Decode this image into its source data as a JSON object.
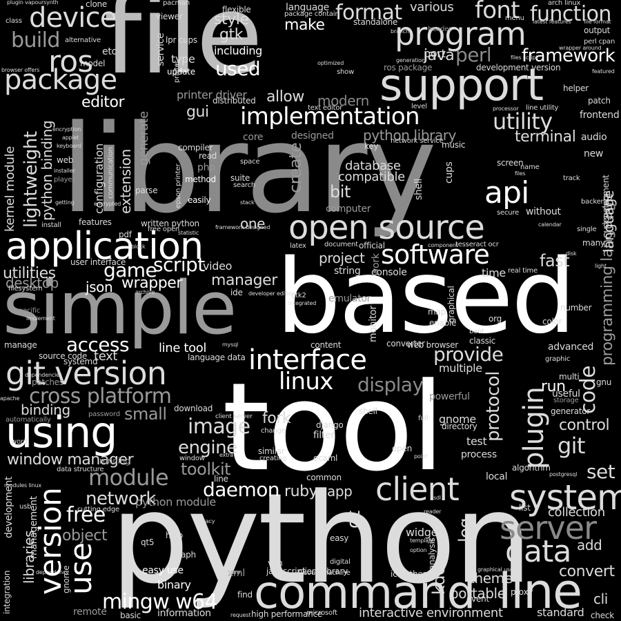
{
  "palette": {
    "background": "#000000",
    "white": "#ffffff",
    "light": "#dcdcdc",
    "mid": "#bdbdbd",
    "gray": "#9a9a9a",
    "dim": "#8a8a8a"
  },
  "words": {
    "file": "file",
    "library": "library",
    "based": "based",
    "tool": "tool",
    "python": "python",
    "simple": "simple",
    "support": "support",
    "command": "command",
    "line": "line",
    "application": "application",
    "open_source": "open source",
    "git_version": "git version",
    "using": "using",
    "interface": "interface",
    "program": "program",
    "implementation": "implementation",
    "software": "software",
    "plugin": "plugin",
    "code": "code",
    "system": "system",
    "client": "client",
    "server": "server",
    "data": "data",
    "cross_platform": "cross platform",
    "package": "package",
    "device": "device",
    "ros": "ros",
    "build": "build",
    "format": "format",
    "font": "font",
    "function": "function",
    "framework": "framework",
    "utility": "utility",
    "api": "api",
    "linux": "linux",
    "mingw_w64": "mingw w64",
    "version": "version",
    "module": "module",
    "network": "network",
    "daemon": "daemon",
    "game": "game",
    "script": "script",
    "access": "access",
    "provide": "provide",
    "display": "display",
    "image": "image",
    "engine": "engine",
    "free": "free",
    "use": "use",
    "theme": "theme",
    "portable": "portable",
    "interactive": "interactive",
    "environment": "environment",
    "editor": "editor",
    "gui": "gui",
    "perl": "perl",
    "java": "java",
    "make": "make",
    "style": "style",
    "gtk": "gtk",
    "including": "including",
    "used": "used",
    "modern": "modern",
    "allow": "allow",
    "lightweight": "lightweight",
    "python_binding": "python binding",
    "kernel_module": "kernel module",
    "utilities": "utilities",
    "desktop": "desktop",
    "window_manager": "window manager",
    "binding": "binding",
    "small": "small",
    "toolkit": "toolkit",
    "fork": "fork",
    "ruby": "ruby",
    "fast": "fast",
    "run": "run",
    "control": "control",
    "git": "git",
    "set": "set",
    "collection": "collection",
    "add": "add",
    "convert": "convert",
    "terminal": "terminal",
    "create": "create",
    "database": "database",
    "compatible": "compatible",
    "bit": "bit",
    "python_library": "python library",
    "project": "project",
    "manager": "manager",
    "wrapper": "wrapper",
    "protocol": "protocol",
    "programming_language": "programming language",
    "object": "object",
    "libraries": "libraries",
    "text": "text",
    "one": "one",
    "json": "json",
    "web": "web",
    "configuration": "configuration",
    "extension": "extension",
    "generate": "generate",
    "service": "service",
    "etc": "etc",
    "type": "type",
    "via": "via",
    "update": "update",
    "various": "various",
    "language": "language",
    "app": "app",
    "qt": "qt",
    "kde": "kde",
    "log": "log",
    "easy_use": "easy use",
    "binary": "binary",
    "remote": "remote",
    "information": "information",
    "standard": "standard",
    "check": "check",
    "fork_small": "linux",
    "multiple": "multiple",
    "powerful": "powerful",
    "test": "test",
    "process": "process",
    "gnome": "gnome",
    "widget": "widget",
    "shell": "shell",
    "filter": "filter",
    "memory": "memory",
    "emulator": "emulator",
    "string": "string",
    "console": "console",
    "time": "time",
    "advanced": "advanced",
    "audio": "audio",
    "frontend": "frontend",
    "helper": "helper",
    "music": "music",
    "screen": "screen",
    "directory": "directory",
    "user_interface": "user interface",
    "video": "video",
    "method": "method",
    "php": "php",
    "pdf": "pdf",
    "features": "features",
    "development": "development",
    "management": "management",
    "integration": "integration",
    "source_code": "source code",
    "systemd": "systemd",
    "patches": "patches",
    "dependencies": "dependencies",
    "automatically": "automatically",
    "password": "password",
    "download": "download",
    "client_server": "client server",
    "python_module": "python module",
    "line_tool": "line tool",
    "language_data": "language data",
    "data_structure": "data structure",
    "running": "running",
    "algorithm": "algorithm",
    "local": "local",
    "output": "output",
    "menu": "menu",
    "header": "header",
    "port": "port",
    "model": "model",
    "parse": "parse",
    "printer_driver": "printer driver",
    "distributed": "distributed",
    "text_editor": "text editor",
    "core": "core",
    "designed": "designed",
    "suite": "suite",
    "search": "search",
    "stack": "stack",
    "easily": "easily",
    "compiler": "compiler",
    "read": "read",
    "space": "space",
    "key": "key",
    "computer": "computer",
    "document": "document",
    "official": "official",
    "latex": "latex",
    "work": "work",
    "map": "map",
    "enable": "enable",
    "boot": "boot",
    "org": "org",
    "color": "color",
    "number": "number",
    "graphic": "graphic",
    "useful": "useful",
    "generator": "generator",
    "storage": "storage",
    "multi": "multi",
    "gnu": "gnu",
    "vim": "vim",
    "xml": "xml",
    "digital": "digital",
    "machine": "machine",
    "sound": "sound",
    "easy": "easy",
    "find": "find",
    "help": "help",
    "qt5": "qt5",
    "graph": "graph",
    "common": "common",
    "ocaml": "ocaml",
    "open": "open",
    "similar": "similar",
    "creating": "creating",
    "change": "change",
    "django": "django",
    "full": "full",
    "gtk2": "gtk2",
    "integrated": "integrated",
    "new": "new",
    "name": "name",
    "track": "track",
    "backend": "backend",
    "single": "single",
    "many": "many",
    "disk": "disk",
    "calendar": "calendar",
    "without": "without",
    "secure": "secure",
    "screen2": "network service",
    "web_browser": "web browser",
    "classic": "classic",
    "converter": "converter",
    "content": "content",
    "icon_theme": "icon theme",
    "client_library": "client library",
    "javascript": "javascript",
    "high_performance": "high performance",
    "microsoft": "microsoft",
    "request": "request",
    "basic": "basic",
    "proxy": "proxy",
    "event": "event",
    "cli": "cli",
    "real_time": "real time",
    "mysql": "mysql",
    "ide": "ide",
    "cups": "cups",
    "lpr_cups": "lpr cups",
    "viewer": "viewer",
    "alternative": "alternative",
    "clone": "clone",
    "class": "class",
    "plugin_vapoursynth": "plugin vapoursynth",
    "classic2": "pacman",
    "flexible": "flexible",
    "standalone": "standalone",
    "package_contain": "package contain",
    "branch": "branch",
    "arch_linux": "arch linux",
    "latest_features": "latest features",
    "file_format": "file format",
    "perl_cpan": "perl cpan",
    "wrapper_around": "wrapper around",
    "featured": "featured",
    "patch": "patch",
    "processor": "processor",
    "line_utility": "line utility",
    "handling": "handling",
    "development_version": "development version",
    "ros_package": "ros package",
    "optimized": "optimized",
    "show": "show",
    "google": "google",
    "files_script": "files script",
    "generation": "generation",
    "keyboard": "keyboard",
    "encryption": "encryption",
    "applet": "applet",
    "installer": "installer",
    "player": "player",
    "getting": "getting",
    "encrypted": "encrypted",
    "install": "install",
    "filesystem": "filesystem",
    "specific": "specific",
    "implement": "implement",
    "manage": "manage",
    "apache": "apache",
    "word": "word",
    "modules_linux": "modules linux",
    "usb": "usb",
    "management2": "development",
    "dependency": "dependency",
    "cutting_edge": "cutting edge",
    "legacy": "legacy",
    "hardware": "hardware",
    "component": "component",
    "tesseract_ocr": "tesseract ocr",
    "free_open": "free open",
    "browser_offers": "browser offers",
    "template": "template",
    "option": "option",
    "postgresql": "postgresql",
    "list": "list",
    "reader": "reader",
    "sdl": "sdl",
    "analysis": "analysis",
    "monitor": "monitor",
    "graphical": "graphical",
    "latex2": "communication",
    "developer_edition": "developer edition",
    "graphical_user": "graphical user",
    "level": "level",
    "files": "files",
    "light": "light",
    "printer": "printer",
    "epson_printer": "epson printer",
    "written_python": "written python",
    "framework_designed": "framework designed",
    "statistic": "statistic",
    "block": "block",
    "archive": "archive",
    "extra": "extra",
    "window": "window",
    "point": "point"
  }
}
